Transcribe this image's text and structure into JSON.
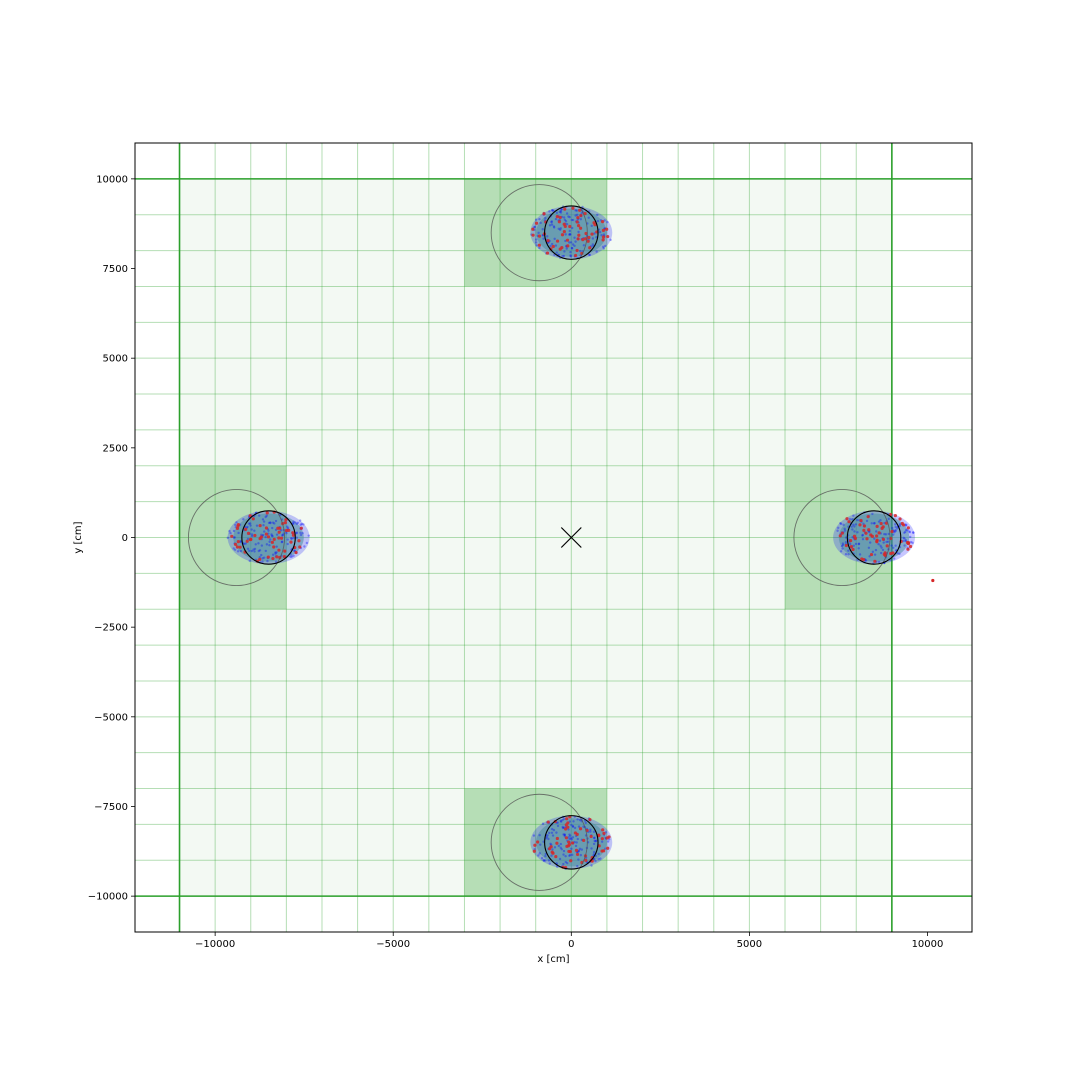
{
  "chart_data": {
    "type": "scatter",
    "title": "",
    "xlabel": "x [cm]",
    "ylabel": "y [cm]",
    "xlim": [
      -12250,
      11250
    ],
    "ylim": [
      -11000,
      11000
    ],
    "x_ticks": [
      -10000,
      -5000,
      0,
      5000,
      10000
    ],
    "x_tick_labels": [
      "−10000",
      "−5000",
      "0",
      "5000",
      "10000"
    ],
    "y_ticks": [
      -10000,
      -7500,
      -5000,
      -2500,
      0,
      2500,
      5000,
      7500,
      10000
    ],
    "y_tick_labels": [
      "−10000",
      "−7500",
      "−5000",
      "−2500",
      "0",
      "2500",
      "5000",
      "7500",
      "10000"
    ],
    "grid": {
      "x_min": -11000,
      "x_max": 9000,
      "y_min": -10000,
      "y_max": 10000,
      "step": 1000,
      "border_x": [
        -11000,
        9000
      ],
      "border_y": [
        -10000,
        10000
      ]
    },
    "highlighted_regions": [
      {
        "x": [
          -3000,
          1000
        ],
        "y": [
          7000,
          10000
        ]
      },
      {
        "x": [
          -11000,
          -8000
        ],
        "y": [
          -2000,
          2000
        ]
      },
      {
        "x": [
          6000,
          9000
        ],
        "y": [
          -2000,
          2000
        ]
      },
      {
        "x": [
          -3000,
          1000
        ],
        "y": [
          -10000,
          -7000
        ]
      }
    ],
    "clusters": [
      {
        "cx": 0,
        "cy": 8500,
        "rx": 1150,
        "ry": 750,
        "ring_center": [
          -900,
          8500
        ],
        "ring_r": 1350,
        "focus_center": [
          0,
          8500
        ],
        "focus_r": 750
      },
      {
        "cx": -8500,
        "cy": 0,
        "rx": 1150,
        "ry": 750,
        "ring_center": [
          -9400,
          0
        ],
        "ring_r": 1350,
        "focus_center": [
          -8500,
          0
        ],
        "focus_r": 750
      },
      {
        "cx": 8500,
        "cy": 0,
        "rx": 1150,
        "ry": 750,
        "ring_center": [
          7600,
          0
        ],
        "ring_r": 1350,
        "focus_center": [
          8500,
          0
        ],
        "focus_r": 750
      },
      {
        "cx": 0,
        "cy": -8500,
        "rx": 1150,
        "ry": 750,
        "ring_center": [
          -900,
          -8500
        ],
        "ring_r": 1350,
        "focus_center": [
          0,
          -8500
        ],
        "focus_r": 750
      }
    ],
    "center_marker": [
      0,
      0
    ],
    "outlier_points": [
      [
        10150,
        -1200
      ]
    ],
    "colors": {
      "grid_line": "#2ca02c",
      "region_light": "#2ca02c",
      "region_dark": "#2ca02c",
      "cloud_blue": "#0000ff",
      "cloud_teal": "#4a8fa0",
      "points_red": "#d62728",
      "ring": "#555555",
      "focus": "#000000"
    }
  }
}
